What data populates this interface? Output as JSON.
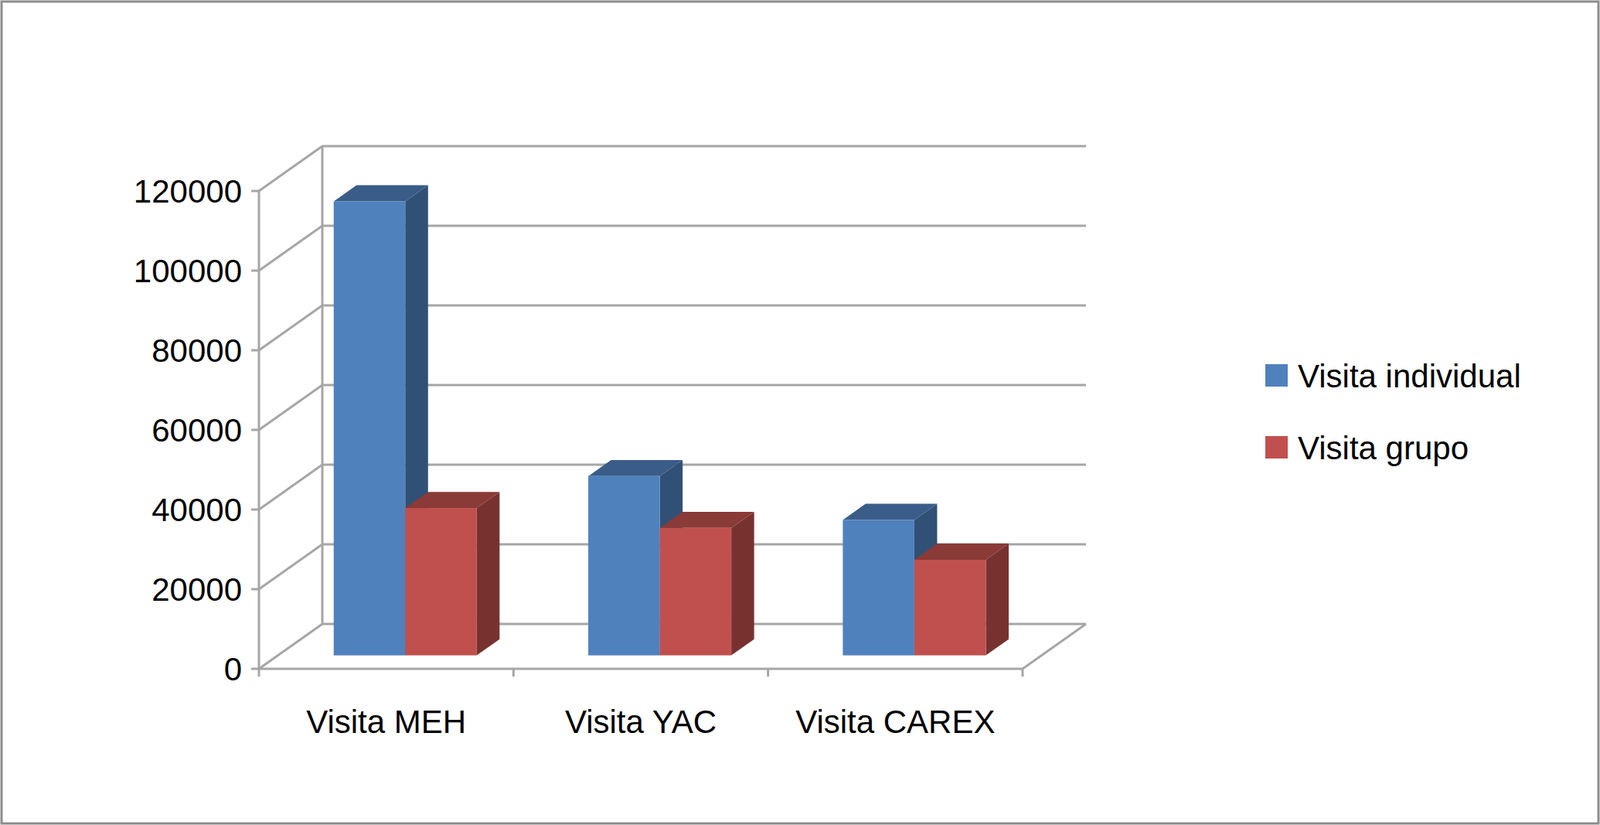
{
  "chart_data": {
    "type": "bar",
    "categories": [
      "Visita MEH",
      "Visita YAC",
      "Visita CAREX"
    ],
    "series": [
      {
        "name": "Visita individual",
        "color": "#4f81bd",
        "values": [
          114000,
          45000,
          34000
        ]
      },
      {
        "name": "Visita grupo",
        "color": "#c0504d",
        "values": [
          37000,
          32000,
          24000
        ]
      }
    ],
    "ylim": [
      0,
      120000
    ],
    "yticks": [
      0,
      20000,
      40000,
      60000,
      80000,
      100000,
      120000
    ],
    "grid": true,
    "legend": "right"
  }
}
